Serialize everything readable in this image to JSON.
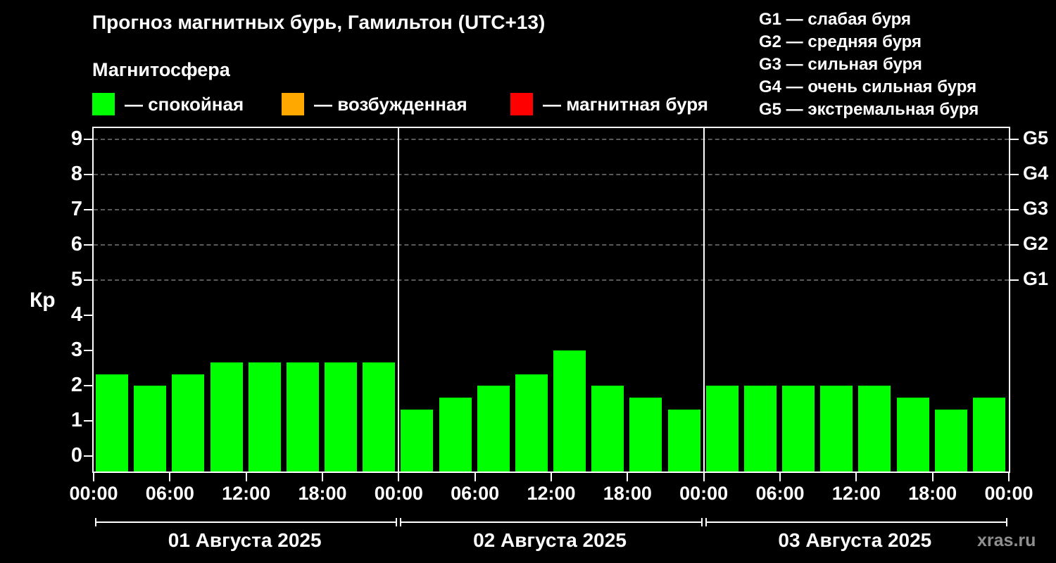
{
  "header": {
    "title": "Прогноз магнитных бурь, Гамильтон (UTC+13)",
    "subtitle": "Магнитосфера",
    "watermark": "xras.ru"
  },
  "legend": {
    "items": [
      {
        "label": "— спокойная",
        "color": "#00ff00"
      },
      {
        "label": "— возбужденная",
        "color": "#ffa800"
      },
      {
        "label": "— магнитная буря",
        "color": "#ff0000"
      }
    ]
  },
  "storm_scale": {
    "items": [
      {
        "label": "G1 — слабая буря"
      },
      {
        "label": "G2 — средняя буря"
      },
      {
        "label": "G3 — сильная буря"
      },
      {
        "label": "G4 — очень сильная буря"
      },
      {
        "label": "G5 — экстремальная буря"
      }
    ]
  },
  "chart_data": {
    "type": "bar",
    "title": "Прогноз магнитных бурь, Гамильтон (UTC+13)",
    "subtitle": "Магнитосфера",
    "ylabel": "Кр",
    "ylim": [
      0,
      9.4
    ],
    "yticks": [
      0,
      1,
      2,
      3,
      4,
      5,
      6,
      7,
      8,
      9
    ],
    "grid_levels": [
      5,
      6,
      7,
      8,
      9
    ],
    "grid_on": true,
    "right_axis": [
      {
        "value": 5,
        "label": "G1"
      },
      {
        "value": 6,
        "label": "G2"
      },
      {
        "value": 7,
        "label": "G3"
      },
      {
        "value": 8,
        "label": "G4"
      },
      {
        "value": 9,
        "label": "G5"
      }
    ],
    "bar_color": "#00ff00",
    "x_tick_labels": [
      "00:00",
      "06:00",
      "12:00",
      "18:00",
      "00:00",
      "06:00",
      "12:00",
      "18:00",
      "00:00",
      "06:00",
      "12:00",
      "18:00",
      "00:00"
    ],
    "bar_interval_hours": 3,
    "days": [
      {
        "date": "01 Августа 2025",
        "values": [
          2.33,
          2,
          2.33,
          2.67,
          2.67,
          2.67,
          2.67,
          2.67
        ]
      },
      {
        "date": "02 Августа 2025",
        "values": [
          1.33,
          1.67,
          2,
          2.33,
          3,
          2,
          1.67,
          1.33
        ]
      },
      {
        "date": "03 Августа 2025",
        "values": [
          2,
          2,
          2,
          2,
          2,
          1.67,
          1.33,
          1.67
        ]
      }
    ]
  }
}
